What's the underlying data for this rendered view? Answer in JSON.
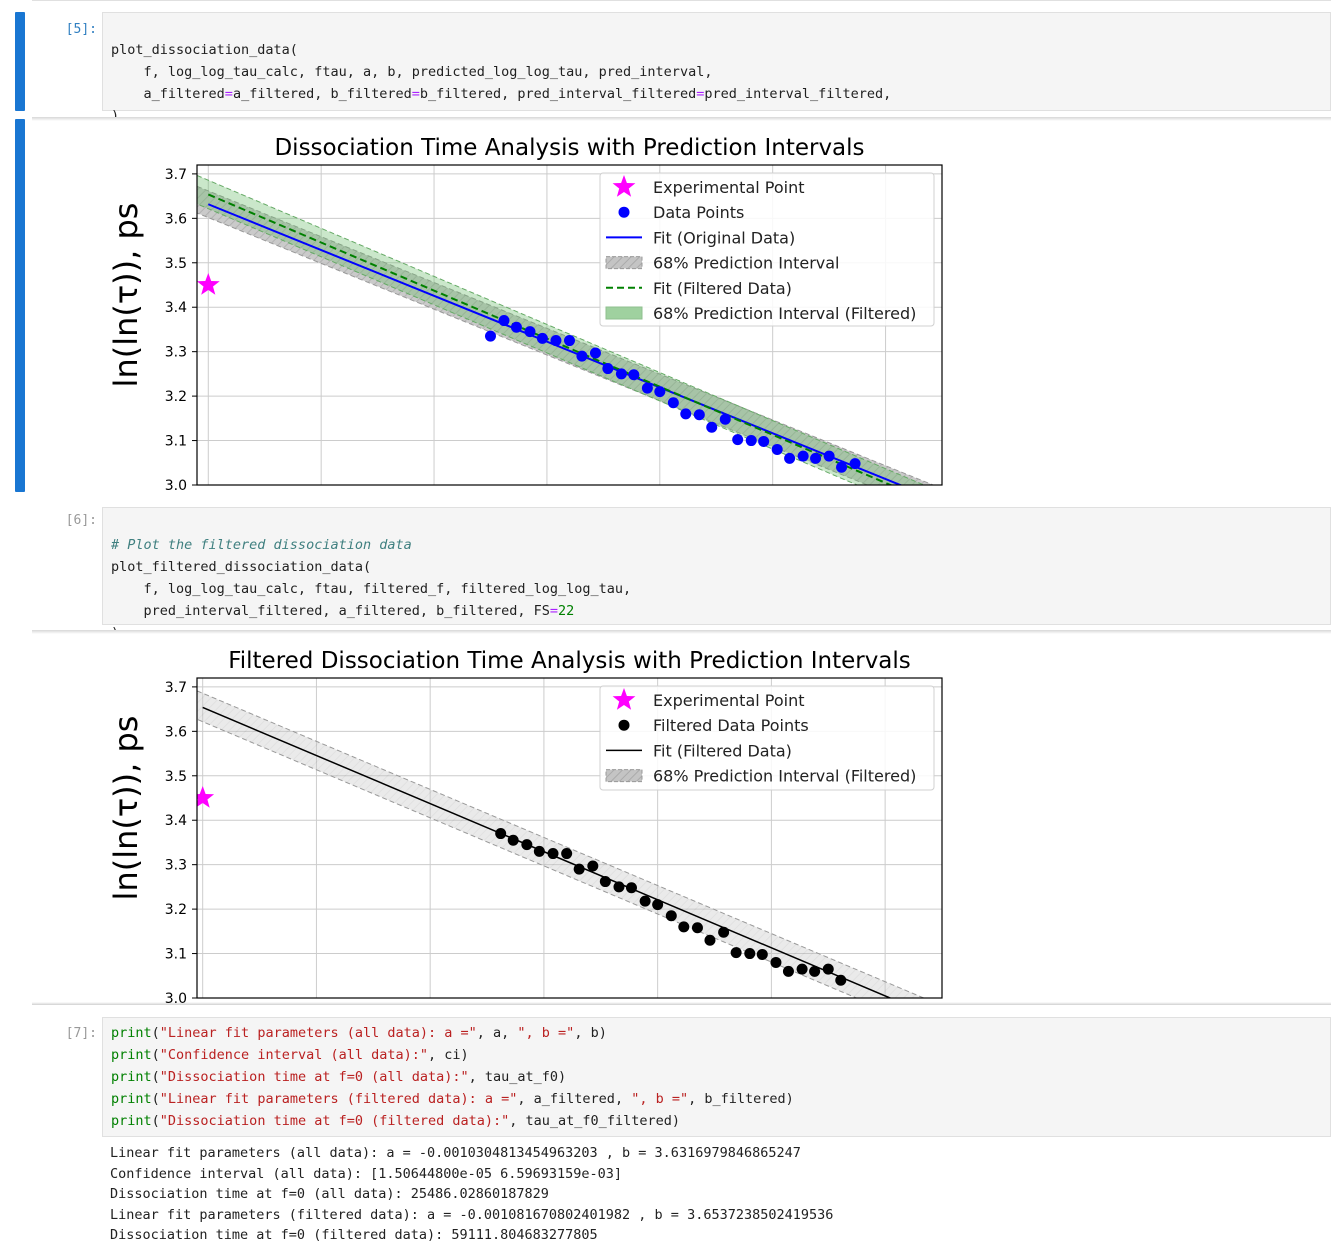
{
  "cells": {
    "cell5": {
      "prompt": "[5]:",
      "line1": "plot_dissociation_data(",
      "line2": "    f, log_log_tau_calc, ftau, a, b, predicted_log_log_tau, pred_interval,",
      "line3a": "    a_filtered",
      "line3b": "=",
      "line3c": "a_filtered, b_filtered",
      "line3d": "=",
      "line3e": "b_filtered, pred_interval_filtered",
      "line3f": "=",
      "line3g": "pred_interval_filtered,",
      "line4": ")"
    },
    "cell6": {
      "prompt": "[6]:",
      "comment": "# Plot the filtered dissociation data",
      "line2": "plot_filtered_dissociation_data(",
      "line3": "    f, log_log_tau_calc, ftau, filtered_f, filtered_log_log_tau,",
      "line4a": "    pred_interval_filtered, a_filtered, b_filtered, FS",
      "line4b": "=",
      "line4c": "22",
      "line5": ")"
    },
    "cell7": {
      "prompt": "[7]:",
      "lines": [
        {
          "fn": "print",
          "open": "(",
          "s": "\"Linear fit parameters (all data): a =\"",
          "mid": ", a, ",
          "s2": "\", b =\"",
          "end": ", b)"
        },
        {
          "fn": "print",
          "open": "(",
          "s": "\"Confidence interval (all data):\"",
          "mid": ", ci)",
          "s2": "",
          "end": ""
        },
        {
          "fn": "print",
          "open": "(",
          "s": "\"Dissociation time at f=0 (all data):\"",
          "mid": ", tau_at_f0)",
          "s2": "",
          "end": ""
        },
        {
          "fn": "print",
          "open": "(",
          "s": "\"Linear fit parameters (filtered data): a =\"",
          "mid": ", a_filtered, ",
          "s2": "\", b =\"",
          "end": ", b_filtered)"
        },
        {
          "fn": "print",
          "open": "(",
          "s": "\"Dissociation time at f=0 (filtered data):\"",
          "mid": ", tau_at_f0_filtered)",
          "s2": "",
          "end": ""
        }
      ],
      "output": [
        "Linear fit parameters (all data): a = -0.0010304813454963203 , b = 3.6316979846865247",
        "Confidence interval (all data): [1.50644800e-05 6.59693159e-03]",
        "Dissociation time at f=0 (all data): 25486.02860187829",
        "Linear fit parameters (filtered data): a = -0.001081670802401982 , b = 3.6537238502419536",
        "Dissociation time at f=0 (filtered data): 59111.804683277805"
      ]
    }
  },
  "chart_data": [
    {
      "type": "scatter",
      "title": "Dissociation Time Analysis with Prediction Intervals",
      "ylabel": "ln(ln(τ)), ps",
      "xlabel": "",
      "ylim": [
        3.0,
        3.72
      ],
      "xlim": [
        -10,
        650
      ],
      "yticks": [
        "3.7",
        "3.6",
        "3.5",
        "3.4",
        "3.3",
        "3.2",
        "3.1",
        "3.0"
      ],
      "grid": true,
      "legend_position": "top-right",
      "legend": [
        "Experimental Point",
        "Data Points",
        "Fit (Original Data)",
        "68% Prediction Interval",
        "Fit (Filtered Data)",
        "68% Prediction Interval (Filtered)"
      ],
      "experimental_point": {
        "x": 0,
        "y": 3.45
      },
      "points": [
        [
          250,
          3.335
        ],
        [
          262,
          3.37
        ],
        [
          273,
          3.355
        ],
        [
          285,
          3.345
        ],
        [
          296,
          3.33
        ],
        [
          308,
          3.325
        ],
        [
          320,
          3.325
        ],
        [
          331,
          3.29
        ],
        [
          343,
          3.297
        ],
        [
          354,
          3.262
        ],
        [
          366,
          3.25
        ],
        [
          377,
          3.248
        ],
        [
          389,
          3.218
        ],
        [
          400,
          3.21
        ],
        [
          412,
          3.185
        ],
        [
          423,
          3.16
        ],
        [
          435,
          3.158
        ],
        [
          446,
          3.13
        ],
        [
          458,
          3.148
        ],
        [
          469,
          3.102
        ],
        [
          481,
          3.1
        ],
        [
          492,
          3.098
        ],
        [
          504,
          3.08
        ],
        [
          515,
          3.06
        ],
        [
          527,
          3.065
        ],
        [
          538,
          3.06
        ],
        [
          550,
          3.065
        ],
        [
          561,
          3.04
        ],
        [
          573,
          3.048
        ]
      ],
      "fit_original": {
        "a": -0.0010304813454963203,
        "b": 3.6316979846865247
      },
      "fit_filtered": {
        "a": -0.001081670802401982,
        "b": 3.6537238502419536
      },
      "pred_half_width": 0.03,
      "pred_half_width_filtered": 0.032,
      "colors": {
        "experimental": "#ff00ff",
        "points": "#0000ff",
        "fit": "#0000ff",
        "fit_filtered": "#008000",
        "band": "#a8a8a8",
        "band_filtered": "#66bb66"
      }
    },
    {
      "type": "scatter",
      "title": "Filtered Dissociation Time Analysis with Prediction Intervals",
      "ylabel": "ln(ln(τ)), ps",
      "xlabel": "",
      "ylim": [
        3.0,
        3.72
      ],
      "xlim": [
        -5,
        650
      ],
      "yticks": [
        "3.7",
        "3.6",
        "3.5",
        "3.4",
        "3.3",
        "3.2",
        "3.1",
        "3.0"
      ],
      "grid": true,
      "legend_position": "top-right",
      "legend": [
        "Experimental Point",
        "Filtered Data Points",
        "Fit (Filtered Data)",
        "68% Prediction Interval (Filtered)"
      ],
      "experimental_point": {
        "x": 0,
        "y": 3.45
      },
      "points": [
        [
          262,
          3.37
        ],
        [
          273,
          3.355
        ],
        [
          285,
          3.345
        ],
        [
          296,
          3.33
        ],
        [
          308,
          3.325
        ],
        [
          320,
          3.325
        ],
        [
          331,
          3.29
        ],
        [
          343,
          3.297
        ],
        [
          354,
          3.262
        ],
        [
          366,
          3.25
        ],
        [
          377,
          3.248
        ],
        [
          389,
          3.218
        ],
        [
          400,
          3.21
        ],
        [
          412,
          3.185
        ],
        [
          423,
          3.16
        ],
        [
          435,
          3.158
        ],
        [
          446,
          3.13
        ],
        [
          458,
          3.148
        ],
        [
          469,
          3.102
        ],
        [
          481,
          3.1
        ],
        [
          492,
          3.098
        ],
        [
          504,
          3.08
        ],
        [
          515,
          3.06
        ],
        [
          527,
          3.065
        ],
        [
          538,
          3.06
        ],
        [
          550,
          3.065
        ],
        [
          561,
          3.04
        ]
      ],
      "fit_filtered": {
        "a": -0.001081670802401982,
        "b": 3.6537238502419536
      },
      "pred_half_width_filtered": 0.032,
      "colors": {
        "experimental": "#ff00ff",
        "points": "#000000",
        "fit": "#000000",
        "band": "#a8a8a8"
      }
    }
  ]
}
